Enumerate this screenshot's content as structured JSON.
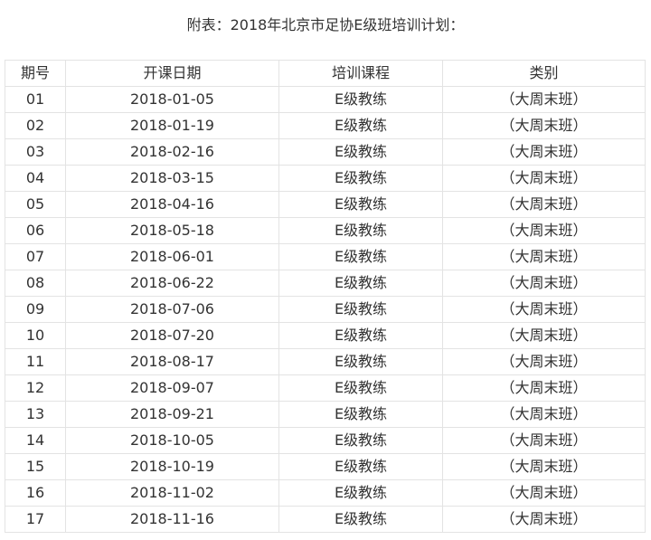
{
  "title": "附表：2018年北京市足协E级班培训计划：",
  "table": {
    "headers": [
      "期号",
      "开课日期",
      "培训课程",
      "类别"
    ],
    "rows": [
      [
        "01",
        "2018-01-05",
        "E级教练",
        "（大周末班）"
      ],
      [
        "02",
        "2018-01-19",
        "E级教练",
        "（大周末班）"
      ],
      [
        "03",
        "2018-02-16",
        "E级教练",
        "（大周末班）"
      ],
      [
        "04",
        "2018-03-15",
        "E级教练",
        "（大周末班）"
      ],
      [
        "05",
        "2018-04-16",
        "E级教练",
        "（大周末班）"
      ],
      [
        "06",
        "2018-05-18",
        "E级教练",
        "（大周末班）"
      ],
      [
        "07",
        "2018-06-01",
        "E级教练",
        "（大周末班）"
      ],
      [
        "08",
        "2018-06-22",
        "E级教练",
        "（大周末班）"
      ],
      [
        "09",
        "2018-07-06",
        "E级教练",
        "（大周末班）"
      ],
      [
        "10",
        "2018-07-20",
        "E级教练",
        "（大周末班）"
      ],
      [
        "11",
        "2018-08-17",
        "E级教练",
        "（大周末班）"
      ],
      [
        "12",
        "2018-09-07",
        "E级教练",
        "（大周末班）"
      ],
      [
        "13",
        "2018-09-21",
        "E级教练",
        "（大周末班）"
      ],
      [
        "14",
        "2018-10-05",
        "E级教练",
        "（大周末班）"
      ],
      [
        "15",
        "2018-10-19",
        "E级教练",
        "（大周末班）"
      ],
      [
        "16",
        "2018-11-02",
        "E级教练",
        "（大周末班）"
      ],
      [
        "17",
        "2018-11-16",
        "E级教练",
        "（大周末班）"
      ]
    ]
  }
}
